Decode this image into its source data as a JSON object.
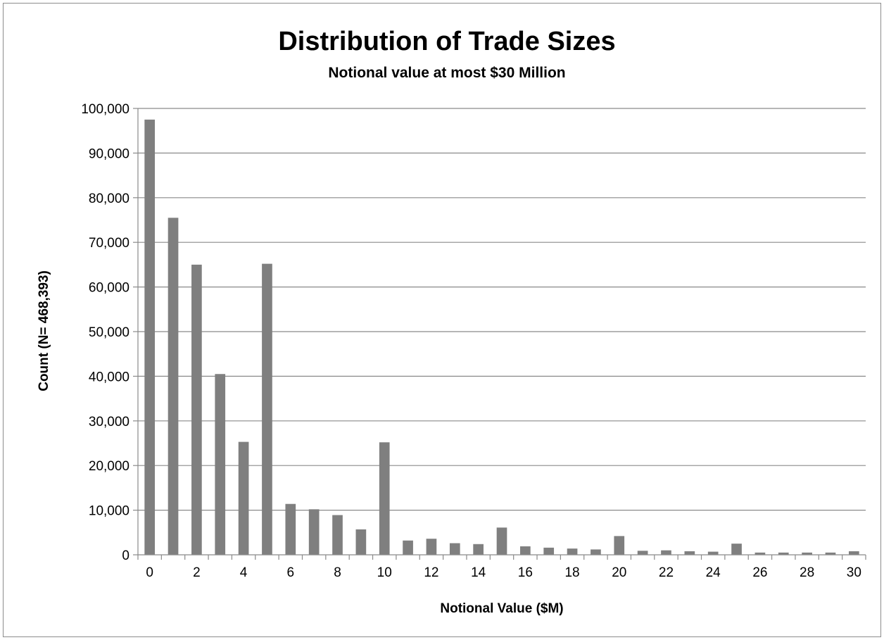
{
  "chart_data": {
    "type": "bar",
    "title": "Distribution of Trade Sizes",
    "subtitle": "Notional value at most $30 Million",
    "xlabel": "Notional Value ($M)",
    "ylabel": "Count (N= 468,393)",
    "x": [
      0,
      1,
      2,
      3,
      4,
      5,
      6,
      7,
      8,
      9,
      10,
      11,
      12,
      13,
      14,
      15,
      16,
      17,
      18,
      19,
      20,
      21,
      22,
      23,
      24,
      25,
      26,
      27,
      28,
      29,
      30
    ],
    "values": [
      97500,
      75500,
      65000,
      40500,
      25300,
      65200,
      11400,
      10200,
      8900,
      5700,
      25200,
      3200,
      3600,
      2600,
      2400,
      6100,
      1900,
      1600,
      1400,
      1200,
      4200,
      900,
      1000,
      800,
      700,
      2500,
      500,
      500,
      500,
      500,
      800
    ],
    "ylim": [
      0,
      100000
    ],
    "yticks": [
      0,
      10000,
      20000,
      30000,
      40000,
      50000,
      60000,
      70000,
      80000,
      90000,
      100000
    ],
    "ytick_labels": [
      "0",
      "10,000",
      "20,000",
      "30,000",
      "40,000",
      "50,000",
      "60,000",
      "70,000",
      "80,000",
      "90,000",
      "100,000"
    ],
    "xtick_labels": [
      "0",
      "2",
      "4",
      "6",
      "8",
      "10",
      "12",
      "14",
      "16",
      "18",
      "20",
      "22",
      "24",
      "26",
      "28",
      "30"
    ],
    "xtick_label_every": 2,
    "grid": true,
    "legend": "none",
    "bar_color": "#7f7f7f",
    "grid_color": "#8a8a8a"
  }
}
